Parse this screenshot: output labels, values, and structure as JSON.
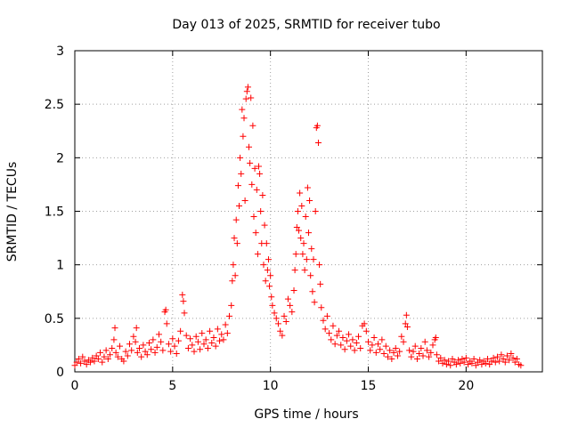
{
  "chart_data": {
    "type": "scatter",
    "title": "Day 013 of 2025, SRMTID for receiver tubo",
    "xlabel": "GPS time / hours",
    "ylabel": "SRMTID / TECUs",
    "xlim": [
      0,
      23.9
    ],
    "ylim": [
      0,
      3
    ],
    "xticks": [
      0,
      5,
      10,
      15,
      20
    ],
    "xtick_labels": [
      "0",
      "5",
      "10",
      "15",
      "20"
    ],
    "yticks": [
      0,
      0.5,
      1,
      1.5,
      2,
      2.5,
      3
    ],
    "ytick_labels": [
      "0",
      "0.5",
      "1",
      "1.5",
      "2",
      "2.5",
      "3"
    ],
    "grid": true,
    "marker": "+",
    "color": "#ff0000",
    "series": [
      {
        "name": "SRMTID",
        "points": [
          [
            0.0,
            0.06
          ],
          [
            0.1,
            0.09
          ],
          [
            0.2,
            0.12
          ],
          [
            0.3,
            0.08
          ],
          [
            0.4,
            0.14
          ],
          [
            0.5,
            0.1
          ],
          [
            0.6,
            0.07
          ],
          [
            0.7,
            0.11
          ],
          [
            0.8,
            0.09
          ],
          [
            0.9,
            0.13
          ],
          [
            1.0,
            0.1
          ],
          [
            1.1,
            0.15
          ],
          [
            1.2,
            0.12
          ],
          [
            1.3,
            0.18
          ],
          [
            1.4,
            0.09
          ],
          [
            1.5,
            0.14
          ],
          [
            1.6,
            0.2
          ],
          [
            1.7,
            0.12
          ],
          [
            1.8,
            0.16
          ],
          [
            1.9,
            0.22
          ],
          [
            2.0,
            0.3
          ],
          [
            2.05,
            0.41
          ],
          [
            2.1,
            0.18
          ],
          [
            2.2,
            0.14
          ],
          [
            2.3,
            0.24
          ],
          [
            2.4,
            0.12
          ],
          [
            2.5,
            0.1
          ],
          [
            2.6,
            0.19
          ],
          [
            2.7,
            0.15
          ],
          [
            2.8,
            0.26
          ],
          [
            2.9,
            0.2
          ],
          [
            3.0,
            0.33
          ],
          [
            3.1,
            0.28
          ],
          [
            3.15,
            0.41
          ],
          [
            3.2,
            0.18
          ],
          [
            3.3,
            0.22
          ],
          [
            3.4,
            0.14
          ],
          [
            3.5,
            0.25
          ],
          [
            3.6,
            0.19
          ],
          [
            3.7,
            0.16
          ],
          [
            3.8,
            0.27
          ],
          [
            3.9,
            0.21
          ],
          [
            4.0,
            0.3
          ],
          [
            4.1,
            0.18
          ],
          [
            4.2,
            0.23
          ],
          [
            4.3,
            0.35
          ],
          [
            4.4,
            0.28
          ],
          [
            4.5,
            0.2
          ],
          [
            4.6,
            0.56
          ],
          [
            4.65,
            0.58
          ],
          [
            4.7,
            0.45
          ],
          [
            4.8,
            0.26
          ],
          [
            4.9,
            0.19
          ],
          [
            5.0,
            0.31
          ],
          [
            5.1,
            0.24
          ],
          [
            5.2,
            0.17
          ],
          [
            5.3,
            0.29
          ],
          [
            5.4,
            0.38
          ],
          [
            5.5,
            0.72
          ],
          [
            5.55,
            0.66
          ],
          [
            5.6,
            0.55
          ],
          [
            5.7,
            0.34
          ],
          [
            5.8,
            0.22
          ],
          [
            5.9,
            0.31
          ],
          [
            6.0,
            0.25
          ],
          [
            6.1,
            0.19
          ],
          [
            6.2,
            0.33
          ],
          [
            6.3,
            0.28
          ],
          [
            6.4,
            0.21
          ],
          [
            6.5,
            0.36
          ],
          [
            6.6,
            0.26
          ],
          [
            6.7,
            0.3
          ],
          [
            6.8,
            0.22
          ],
          [
            6.9,
            0.38
          ],
          [
            7.0,
            0.27
          ],
          [
            7.1,
            0.32
          ],
          [
            7.2,
            0.24
          ],
          [
            7.3,
            0.4
          ],
          [
            7.4,
            0.29
          ],
          [
            7.5,
            0.35
          ],
          [
            7.6,
            0.3
          ],
          [
            7.7,
            0.44
          ],
          [
            7.8,
            0.36
          ],
          [
            7.9,
            0.52
          ],
          [
            8.0,
            0.62
          ],
          [
            8.05,
            0.85
          ],
          [
            8.1,
            1.0
          ],
          [
            8.15,
            1.25
          ],
          [
            8.2,
            0.9
          ],
          [
            8.25,
            1.42
          ],
          [
            8.3,
            1.2
          ],
          [
            8.35,
            1.74
          ],
          [
            8.4,
            1.55
          ],
          [
            8.45,
            2.0
          ],
          [
            8.5,
            1.85
          ],
          [
            8.55,
            2.45
          ],
          [
            8.6,
            2.2
          ],
          [
            8.65,
            2.37
          ],
          [
            8.7,
            1.6
          ],
          [
            8.75,
            2.55
          ],
          [
            8.8,
            2.62
          ],
          [
            8.85,
            2.66
          ],
          [
            8.9,
            2.1
          ],
          [
            8.95,
            1.95
          ],
          [
            9.0,
            2.56
          ],
          [
            9.05,
            1.75
          ],
          [
            9.1,
            2.3
          ],
          [
            9.15,
            1.45
          ],
          [
            9.2,
            1.9
          ],
          [
            9.25,
            1.3
          ],
          [
            9.3,
            1.7
          ],
          [
            9.35,
            1.1
          ],
          [
            9.4,
            1.92
          ],
          [
            9.45,
            1.85
          ],
          [
            9.5,
            1.5
          ],
          [
            9.55,
            1.2
          ],
          [
            9.6,
            1.65
          ],
          [
            9.65,
            1.0
          ],
          [
            9.7,
            1.37
          ],
          [
            9.75,
            0.85
          ],
          [
            9.8,
            1.2
          ],
          [
            9.85,
            0.95
          ],
          [
            9.9,
            1.05
          ],
          [
            9.95,
            0.8
          ],
          [
            10.0,
            0.9
          ],
          [
            10.05,
            0.7
          ],
          [
            10.1,
            0.62
          ],
          [
            10.2,
            0.55
          ],
          [
            10.3,
            0.5
          ],
          [
            10.4,
            0.45
          ],
          [
            10.5,
            0.38
          ],
          [
            10.6,
            0.34
          ],
          [
            10.7,
            0.52
          ],
          [
            10.8,
            0.47
          ],
          [
            10.9,
            0.68
          ],
          [
            11.0,
            0.62
          ],
          [
            11.1,
            0.56
          ],
          [
            11.2,
            0.76
          ],
          [
            11.25,
            0.95
          ],
          [
            11.3,
            1.1
          ],
          [
            11.35,
            1.35
          ],
          [
            11.4,
            1.5
          ],
          [
            11.45,
            1.32
          ],
          [
            11.5,
            1.67
          ],
          [
            11.55,
            1.25
          ],
          [
            11.6,
            1.55
          ],
          [
            11.65,
            1.1
          ],
          [
            11.7,
            1.2
          ],
          [
            11.75,
            0.95
          ],
          [
            11.8,
            1.45
          ],
          [
            11.85,
            1.05
          ],
          [
            11.9,
            1.72
          ],
          [
            11.95,
            1.3
          ],
          [
            12.0,
            1.6
          ],
          [
            12.05,
            0.9
          ],
          [
            12.1,
            1.15
          ],
          [
            12.15,
            0.75
          ],
          [
            12.2,
            1.05
          ],
          [
            12.25,
            0.65
          ],
          [
            12.3,
            1.5
          ],
          [
            12.35,
            2.28
          ],
          [
            12.4,
            2.3
          ],
          [
            12.45,
            2.14
          ],
          [
            12.5,
            1.0
          ],
          [
            12.55,
            0.82
          ],
          [
            12.6,
            0.6
          ],
          [
            12.7,
            0.48
          ],
          [
            12.8,
            0.4
          ],
          [
            12.9,
            0.52
          ],
          [
            13.0,
            0.36
          ],
          [
            13.1,
            0.3
          ],
          [
            13.2,
            0.43
          ],
          [
            13.3,
            0.26
          ],
          [
            13.4,
            0.34
          ],
          [
            13.5,
            0.38
          ],
          [
            13.6,
            0.25
          ],
          [
            13.7,
            0.32
          ],
          [
            13.8,
            0.21
          ],
          [
            13.9,
            0.29
          ],
          [
            14.0,
            0.35
          ],
          [
            14.1,
            0.24
          ],
          [
            14.2,
            0.3
          ],
          [
            14.3,
            0.2
          ],
          [
            14.4,
            0.27
          ],
          [
            14.5,
            0.33
          ],
          [
            14.6,
            0.22
          ],
          [
            14.7,
            0.43
          ],
          [
            14.8,
            0.45
          ],
          [
            14.9,
            0.38
          ],
          [
            15.0,
            0.28
          ],
          [
            15.1,
            0.2
          ],
          [
            15.2,
            0.25
          ],
          [
            15.3,
            0.32
          ],
          [
            15.4,
            0.18
          ],
          [
            15.5,
            0.26
          ],
          [
            15.6,
            0.21
          ],
          [
            15.7,
            0.3
          ],
          [
            15.8,
            0.17
          ],
          [
            15.9,
            0.24
          ],
          [
            16.0,
            0.14
          ],
          [
            16.1,
            0.2
          ],
          [
            16.2,
            0.12
          ],
          [
            16.3,
            0.18
          ],
          [
            16.4,
            0.22
          ],
          [
            16.5,
            0.15
          ],
          [
            16.6,
            0.19
          ],
          [
            16.7,
            0.33
          ],
          [
            16.8,
            0.28
          ],
          [
            16.9,
            0.45
          ],
          [
            16.95,
            0.53
          ],
          [
            17.0,
            0.42
          ],
          [
            17.1,
            0.2
          ],
          [
            17.2,
            0.14
          ],
          [
            17.3,
            0.19
          ],
          [
            17.4,
            0.24
          ],
          [
            17.5,
            0.12
          ],
          [
            17.6,
            0.17
          ],
          [
            17.7,
            0.22
          ],
          [
            17.8,
            0.15
          ],
          [
            17.9,
            0.28
          ],
          [
            18.0,
            0.2
          ],
          [
            18.1,
            0.14
          ],
          [
            18.2,
            0.18
          ],
          [
            18.3,
            0.25
          ],
          [
            18.4,
            0.3
          ],
          [
            18.45,
            0.32
          ],
          [
            18.5,
            0.16
          ],
          [
            18.6,
            0.1
          ],
          [
            18.7,
            0.13
          ],
          [
            18.8,
            0.08
          ],
          [
            18.9,
            0.11
          ],
          [
            19.0,
            0.07
          ],
          [
            19.1,
            0.1
          ],
          [
            19.2,
            0.06
          ],
          [
            19.3,
            0.12
          ],
          [
            19.4,
            0.09
          ],
          [
            19.5,
            0.07
          ],
          [
            19.6,
            0.11
          ],
          [
            19.7,
            0.08
          ],
          [
            19.8,
            0.12
          ],
          [
            19.9,
            0.09
          ],
          [
            20.0,
            0.13
          ],
          [
            20.1,
            0.07
          ],
          [
            20.2,
            0.1
          ],
          [
            20.3,
            0.08
          ],
          [
            20.4,
            0.12
          ],
          [
            20.5,
            0.06
          ],
          [
            20.6,
            0.09
          ],
          [
            20.7,
            0.11
          ],
          [
            20.8,
            0.07
          ],
          [
            20.9,
            0.1
          ],
          [
            21.0,
            0.08
          ],
          [
            21.1,
            0.12
          ],
          [
            21.2,
            0.07
          ],
          [
            21.3,
            0.1
          ],
          [
            21.4,
            0.13
          ],
          [
            21.5,
            0.09
          ],
          [
            21.6,
            0.14
          ],
          [
            21.7,
            0.1
          ],
          [
            21.8,
            0.16
          ],
          [
            21.9,
            0.12
          ],
          [
            22.0,
            0.09
          ],
          [
            22.1,
            0.15
          ],
          [
            22.2,
            0.11
          ],
          [
            22.3,
            0.17
          ],
          [
            22.4,
            0.13
          ],
          [
            22.5,
            0.09
          ],
          [
            22.6,
            0.12
          ],
          [
            22.7,
            0.07
          ],
          [
            22.8,
            0.06
          ]
        ]
      }
    ]
  }
}
